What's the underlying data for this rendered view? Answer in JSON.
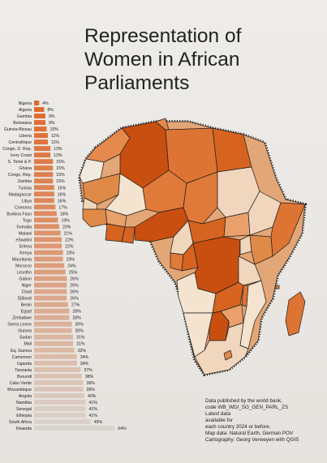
{
  "title": "Representation of\nWomen in African\nParliaments",
  "notes": [
    "Data published by the world bank,",
    "code WB_WDI_SG_GEN_PARL_ZS",
    "Latest data",
    "available for",
    "each country 2024 or before.",
    "Map data: Natural Earth, German POV",
    "Cartography: Georg Verweyen with QGIS"
  ],
  "colors": {
    "bar_low": "#e0672a",
    "bar_high": "#d9d3cc",
    "background": "#eeece9",
    "map_dark": "#c94f10",
    "map_light": "#e6c7a6"
  },
  "chart_data": {
    "type": "bar",
    "orientation": "horizontal",
    "unit": "%",
    "categories": [
      "Nigeria",
      "Algeria",
      "Gambia",
      "Botswana",
      "Guinea-Bissau",
      "Liberia",
      "Centrafrique",
      "Congo, D. Rep.",
      "Ivory Coast",
      "S. Tomé & P.",
      "Ghana",
      "Congo, Rep.",
      "Zambia",
      "Tunisia",
      "Madagascar",
      "Libya",
      "Comoros",
      "Burkina Faso",
      "Togo",
      "Somalia",
      "Malawi",
      "eSwatini",
      "Eritrea",
      "Kenya",
      "Mauritania",
      "Morocco",
      "Lesotho",
      "Gabon",
      "Niger",
      "Chad",
      "Djibouti",
      "Benin",
      "Egypt",
      "Zimbabwe",
      "Sierra Leone",
      "Guinea",
      "Sudan",
      "Mali",
      "Eq. Guinea",
      "Cameroon",
      "Uganda",
      "Tanzania",
      "Burundi",
      "Cabo Verde",
      "Mozambique",
      "Angola",
      "Namibia",
      "Senegal",
      "Ethiopia",
      "South Africa",
      "Rwanda"
    ],
    "values": [
      4,
      8,
      9,
      9,
      10,
      11,
      11,
      13,
      13,
      15,
      15,
      15,
      15,
      16,
      16,
      16,
      17,
      18,
      19,
      20,
      21,
      22,
      22,
      23,
      23,
      24,
      25,
      26,
      26,
      26,
      26,
      27,
      28,
      28,
      30,
      30,
      31,
      31,
      32,
      34,
      34,
      37,
      38,
      39,
      39,
      40,
      41,
      41,
      41,
      45,
      64
    ],
    "labels": [
      "4%",
      "8%",
      "9%",
      "9%",
      "10%",
      "11%",
      "11%",
      "13%",
      "13%",
      "15%",
      "15%",
      "15%",
      "15%",
      "16%",
      "16%",
      "16%",
      "17%",
      "18%",
      "19%",
      "20%",
      "21%",
      "22%",
      "22%",
      "23%",
      "23%",
      "24%",
      "25%",
      "26%",
      "26%",
      "26%",
      "26%",
      "27%",
      "28%",
      "28%",
      "30%",
      "30%",
      "31%",
      "31%",
      "32%",
      "34%",
      "34%",
      "37%",
      "38%",
      "39%",
      "39%",
      "40%",
      "41%",
      "41%",
      "41%",
      "45%",
      "64%"
    ]
  }
}
